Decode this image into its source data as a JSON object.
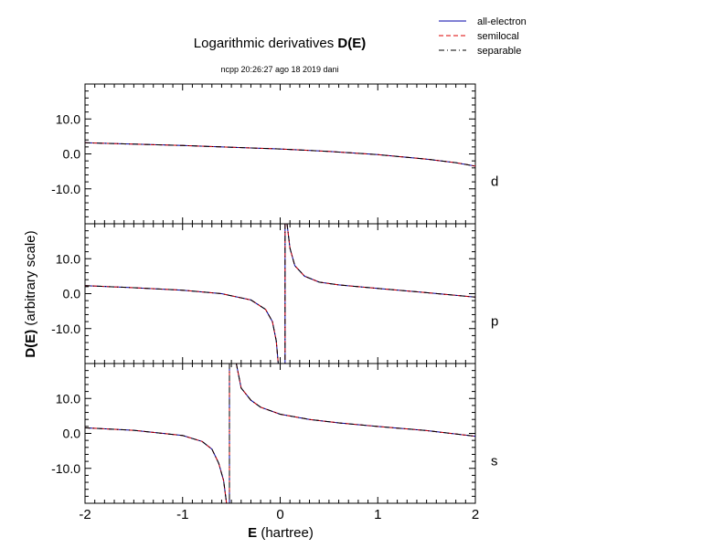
{
  "chart_data": {
    "type": "line",
    "title": "Logarithmic derivatives",
    "title_bold": "D(E)",
    "subtitle": "ncpp 20:26:27 ago 18 2019 dani",
    "xlabel_bold": "E",
    "xlabel_rest": "(hartree)",
    "ylabel_bold": "D(E)",
    "ylabel_rest": "(arbitrary scale)",
    "xlim": [
      -2,
      2
    ],
    "ylim": [
      -20,
      20
    ],
    "x_tick_labels": [
      "-2",
      "-1",
      "0",
      "1",
      "2"
    ],
    "y_tick_labels": [
      "10.0",
      "0.0",
      "-10.0"
    ],
    "legend_position": "top-right",
    "legend": [
      {
        "name": "all-electron",
        "color": "#0000aa",
        "dash": "solid"
      },
      {
        "name": "semilocal",
        "color": "#dd0000",
        "dash": "dashed"
      },
      {
        "name": "separable",
        "color": "#000000",
        "dash": "dash-dot"
      }
    ],
    "panels": [
      {
        "label": "d",
        "series": [
          {
            "x": [
              -2.0,
              -1.5,
              -1.0,
              -0.5,
              0.0,
              0.5,
              1.0,
              1.5,
              1.8,
              2.0
            ],
            "y": [
              3.2,
              2.8,
              2.4,
              1.9,
              1.4,
              0.7,
              -0.2,
              -1.5,
              -2.5,
              -3.5
            ]
          }
        ]
      },
      {
        "label": "p",
        "series": [
          {
            "x": [
              -2.0,
              -1.5,
              -1.0,
              -0.6,
              -0.3,
              -0.15,
              -0.08,
              -0.04,
              -0.02
            ],
            "y": [
              2.3,
              1.7,
              1.0,
              0.0,
              -1.8,
              -4.5,
              -8.0,
              -13.5,
              -20.0
            ]
          },
          {
            "x": [
              0.07,
              0.1,
              0.15,
              0.25,
              0.4,
              0.6,
              1.0,
              1.5,
              2.0
            ],
            "y": [
              20.0,
              13.0,
              8.0,
              5.0,
              3.3,
              2.5,
              1.5,
              0.3,
              -1.0
            ]
          }
        ],
        "asymptote_x": 0.05
      },
      {
        "label": "s",
        "series": [
          {
            "x": [
              -2.0,
              -1.5,
              -1.0,
              -0.8,
              -0.7,
              -0.63,
              -0.58,
              -0.55
            ],
            "y": [
              1.6,
              0.9,
              -0.6,
              -2.3,
              -4.5,
              -8.5,
              -13.5,
              -20.0
            ]
          },
          {
            "x": [
              -0.45,
              -0.4,
              -0.3,
              -0.2,
              0.0,
              0.3,
              0.6,
              1.0,
              1.5,
              2.0
            ],
            "y": [
              20.0,
              13.0,
              9.5,
              7.5,
              5.5,
              4.0,
              3.0,
              2.0,
              0.8,
              -0.8
            ]
          }
        ],
        "asymptote_x": -0.52
      }
    ]
  }
}
